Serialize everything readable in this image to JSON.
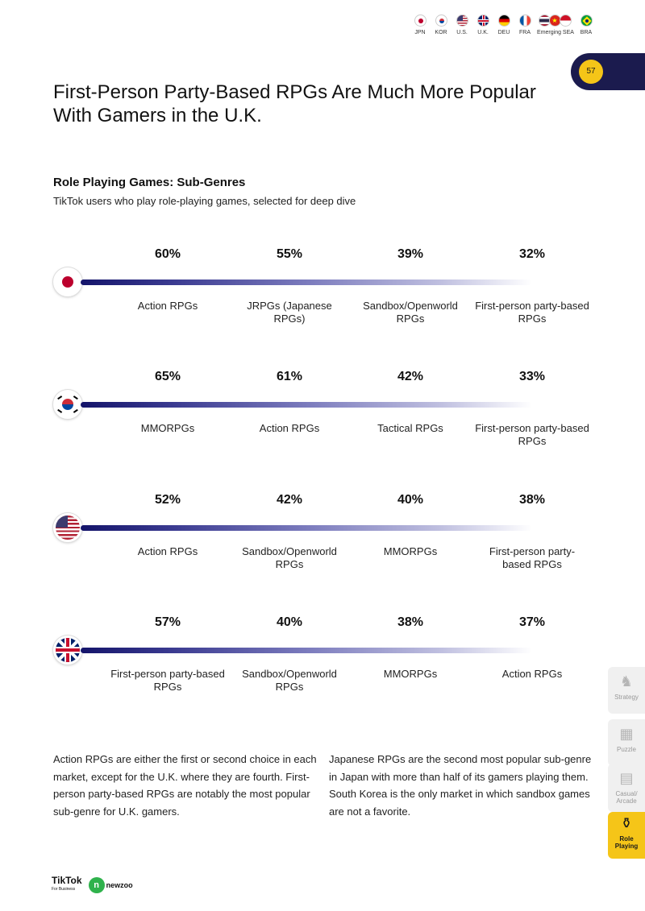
{
  "header": {
    "flags": [
      {
        "code": "JPN"
      },
      {
        "code": "KOR"
      },
      {
        "code": "U.S."
      },
      {
        "code": "U.K."
      },
      {
        "code": "DEU"
      },
      {
        "code": "FRA"
      },
      {
        "code": "Emerging SEA"
      },
      {
        "code": "BRA"
      }
    ],
    "page_number": "57"
  },
  "title": "First-Person Party-Based RPGs Are Much More Popular With Gamers in the U.K.",
  "section_title": "Role Playing Games: Sub-Genres",
  "section_desc": "TikTok users who play role-playing games, selected for deep dive",
  "rows": [
    {
      "country": "Japan",
      "items": [
        {
          "pct": "60%",
          "label": "Action RPGs"
        },
        {
          "pct": "55%",
          "label": "JRPGs (Japanese RPGs)"
        },
        {
          "pct": "39%",
          "label": "Sandbox/Openworld RPGs"
        },
        {
          "pct": "32%",
          "label": "First-person party-based RPGs"
        }
      ]
    },
    {
      "country": "South Korea",
      "items": [
        {
          "pct": "65%",
          "label": "MMORPGs"
        },
        {
          "pct": "61%",
          "label": "Action RPGs"
        },
        {
          "pct": "42%",
          "label": "Tactical RPGs"
        },
        {
          "pct": "33%",
          "label": "First-person party-based RPGs"
        }
      ]
    },
    {
      "country": "United States",
      "items": [
        {
          "pct": "52%",
          "label": "Action RPGs"
        },
        {
          "pct": "42%",
          "label": "Sandbox/Openworld RPGs"
        },
        {
          "pct": "40%",
          "label": "MMORPGs"
        },
        {
          "pct": "38%",
          "label": "First-person party-based RPGs"
        }
      ]
    },
    {
      "country": "United Kingdom",
      "items": [
        {
          "pct": "57%",
          "label": "First-person party-based RPGs"
        },
        {
          "pct": "40%",
          "label": "Sandbox/Openworld RPGs"
        },
        {
          "pct": "38%",
          "label": "MMORPGs"
        },
        {
          "pct": "37%",
          "label": "Action RPGs"
        }
      ]
    }
  ],
  "body_left": "Action RPGs are either the first or second choice in each market, except for the U.K. where they are fourth. First-person party-based RPGs are notably the most popular sub-genre for U.K. gamers.",
  "body_right": "Japanese RPGs are the second most popular sub-genre in Japan with more than half of its gamers playing them. South Korea is the only market in which sandbox games are not a favorite.",
  "side_nav": [
    {
      "label": "Strategy",
      "icon": "chess-knight-icon",
      "active": false
    },
    {
      "label": "Puzzle",
      "icon": "puzzle-icon",
      "active": false
    },
    {
      "label": "Casual/ Arcade",
      "icon": "arcade-icon",
      "active": false
    },
    {
      "label": "Role Playing",
      "icon": "role-playing-icon",
      "active": true
    }
  ],
  "footer": {
    "tiktok": "TikTok",
    "tiktok_sub": "For Business",
    "newzoo": "newzoo"
  },
  "colors": {
    "accent": "#f5c518",
    "navy": "#1b1b4e",
    "bar_start": "#14146a"
  }
}
